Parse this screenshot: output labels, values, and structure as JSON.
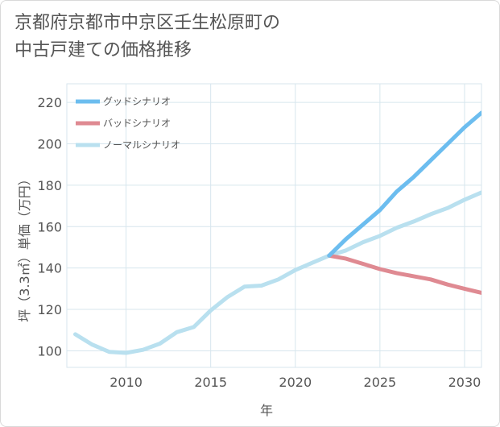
{
  "title_line1": "京都府京都市中京区壬生松原町の",
  "title_line2": "中古戸建ての価格推移",
  "chart_data": {
    "type": "line",
    "xlabel": "年",
    "ylabel": "坪（3.3㎡）単価（万円）",
    "xlim": [
      2006.5,
      2031
    ],
    "ylim": [
      92,
      229
    ],
    "x_ticks": [
      2010,
      2015,
      2020,
      2025,
      2030
    ],
    "y_ticks": [
      100,
      120,
      140,
      160,
      180,
      200,
      220
    ],
    "grid": true,
    "legend_position": "top-left",
    "series": [
      {
        "name": "グッドシナリオ",
        "color": "#6cbdef",
        "x": [
          2022,
          2023,
          2024,
          2025,
          2026,
          2027,
          2028,
          2029,
          2030,
          2031
        ],
        "values": [
          146,
          154,
          161,
          168,
          177,
          184,
          192,
          200,
          208,
          215
        ]
      },
      {
        "name": "バッドシナリオ",
        "color": "#df8a92",
        "x": [
          2022,
          2023,
          2024,
          2025,
          2026,
          2027,
          2028,
          2029,
          2030,
          2031
        ],
        "values": [
          146,
          144.5,
          142,
          139.5,
          137.5,
          136,
          134.5,
          132,
          130,
          128
        ]
      },
      {
        "name": "ノーマルシナリオ",
        "color": "#b9e0ef",
        "x": [
          2007,
          2008,
          2009,
          2010,
          2011,
          2012,
          2013,
          2014,
          2015,
          2016,
          2017,
          2018,
          2019,
          2020,
          2021,
          2022,
          2023,
          2024,
          2025,
          2026,
          2027,
          2028,
          2029,
          2030,
          2031
        ],
        "values": [
          108,
          103,
          99.5,
          99,
          100.5,
          103.5,
          109,
          111.5,
          119.5,
          126,
          131,
          131.5,
          134.5,
          139,
          142.5,
          146,
          148.5,
          152.5,
          155.5,
          159.5,
          162.5,
          166,
          169,
          173,
          176.5
        ]
      }
    ]
  }
}
